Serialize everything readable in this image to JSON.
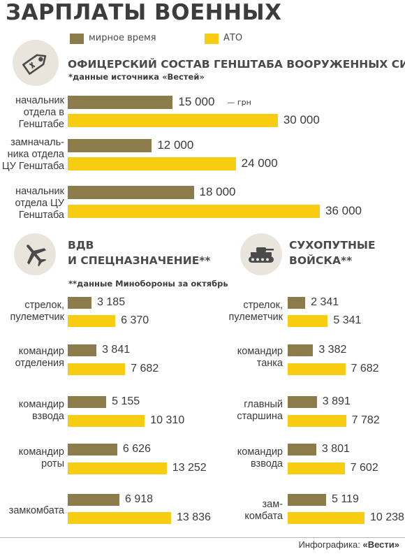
{
  "title": "ЗАРПЛАТЫ ВОЕННЫХ",
  "colors": {
    "peace": "#8c7c4c",
    "ato": "#f7cc11",
    "text": "#3a3a3a"
  },
  "legend": {
    "peace_label": "мирное время",
    "ato_label": "АТО"
  },
  "sections": {
    "staff": {
      "title": "ОФИЦЕРСКИЙ СОСТАВ ГЕНШТАБА ВООРУЖЕННЫХ СИЛ*",
      "note": "*данные источника «Вестей»",
      "unit": "— грн",
      "icon": "money-tag-icon"
    },
    "vdv": {
      "title_line1": "ВДВ",
      "title_line2": "И СПЕЦНАЗНАЧЕНИЕ**",
      "note": "**данные Минобороны за октябрь",
      "icon": "airplane-icon"
    },
    "ground": {
      "title_line1": "СУХОПУТНЫЕ",
      "title_line2": "ВОЙСКА**",
      "icon": "tank-icon"
    }
  },
  "chart_data": [
    {
      "type": "bar",
      "orientation": "horizontal",
      "title": "ОФИЦЕРСКИЙ СОСТАВ ГЕНШТАБА ВООРУЖЕННЫХ СИЛ*",
      "categories": [
        [
          "начальник",
          "отдела в",
          "Генштабе"
        ],
        [
          "замначаль-",
          "ника отдела",
          "ЦУ Генштаба"
        ],
        [
          "начальник",
          "отдела ЦУ",
          "Генштаба"
        ]
      ],
      "series": [
        {
          "name": "мирное время",
          "values": [
            15000,
            12000,
            18000
          ],
          "labels": [
            "15 000",
            "12 000",
            "18 000"
          ]
        },
        {
          "name": "АТО",
          "values": [
            30000,
            24000,
            36000
          ],
          "labels": [
            "30 000",
            "24 000",
            "36 000"
          ]
        }
      ]
    },
    {
      "type": "bar",
      "orientation": "horizontal",
      "title": "ВДВ И СПЕЦНАЗНАЧЕНИЕ**",
      "categories": [
        [
          "стрелок,",
          "пулеметчик"
        ],
        [
          "командир",
          "отделения"
        ],
        [
          "командир",
          "взвода"
        ],
        [
          "командир",
          "роты"
        ],
        [
          "замкомбата"
        ]
      ],
      "series": [
        {
          "name": "мирное время",
          "values": [
            3185,
            3841,
            5155,
            6626,
            6918
          ],
          "labels": [
            "3 185",
            "3 841",
            "5 155",
            "6 626",
            "6 918"
          ]
        },
        {
          "name": "АТО",
          "values": [
            6370,
            7682,
            10310,
            13252,
            13836
          ],
          "labels": [
            "6 370",
            "7 682",
            "10 310",
            "13 252",
            "13 836"
          ]
        }
      ]
    },
    {
      "type": "bar",
      "orientation": "horizontal",
      "title": "СУХОПУТНЫЕ ВОЙСКА**",
      "categories": [
        [
          "стрелок,",
          "пулеметчик"
        ],
        [
          "командир",
          "танка"
        ],
        [
          "главный",
          "старшина"
        ],
        [
          "командир",
          "взвода"
        ],
        [
          "зам-",
          "комбата"
        ]
      ],
      "series": [
        {
          "name": "мирное время",
          "values": [
            2341,
            3382,
            3891,
            3801,
            5119
          ],
          "labels": [
            "2 341",
            "3 382",
            "3 891",
            "3 801",
            "5 119"
          ]
        },
        {
          "name": "АТО",
          "values": [
            5341,
            7682,
            7782,
            7602,
            10238
          ],
          "labels": [
            "5 341",
            "7 682",
            "7 782",
            "7 602",
            "10 238"
          ]
        }
      ]
    }
  ],
  "credit": {
    "prefix": "Инфографика: ",
    "brand": "«Вести»"
  }
}
